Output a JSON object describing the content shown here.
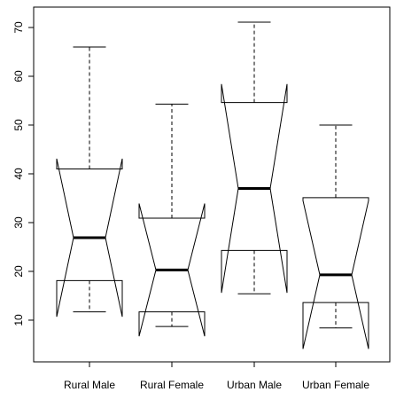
{
  "chart_data": {
    "type": "boxplot",
    "notch": true,
    "categories": [
      "Rural Male",
      "Rural Female",
      "Urban Male",
      "Urban Female"
    ],
    "boxes": [
      {
        "whisker_low": 11.7,
        "q1": 18.1,
        "median": 26.9,
        "q3": 41.0,
        "whisker_high": 66.0,
        "notch_low": 10.7,
        "notch_high": 43.1
      },
      {
        "whisker_low": 8.7,
        "q1": 11.7,
        "median": 20.3,
        "q3": 30.9,
        "whisker_high": 54.3,
        "notch_low": 6.7,
        "notch_high": 33.9
      },
      {
        "whisker_low": 15.4,
        "q1": 24.3,
        "median": 37.0,
        "q3": 54.6,
        "whisker_high": 71.1,
        "notch_low": 15.6,
        "notch_high": 58.4
      },
      {
        "whisker_low": 8.4,
        "q1": 13.6,
        "median": 19.3,
        "q3": 35.1,
        "whisker_high": 50.0,
        "notch_low": 4.1,
        "notch_high": 34.5
      }
    ],
    "color": "#000000",
    "ylim": [
      1.45,
      74.18
    ],
    "yticks": [
      10,
      20,
      30,
      40,
      50,
      60,
      70
    ]
  }
}
